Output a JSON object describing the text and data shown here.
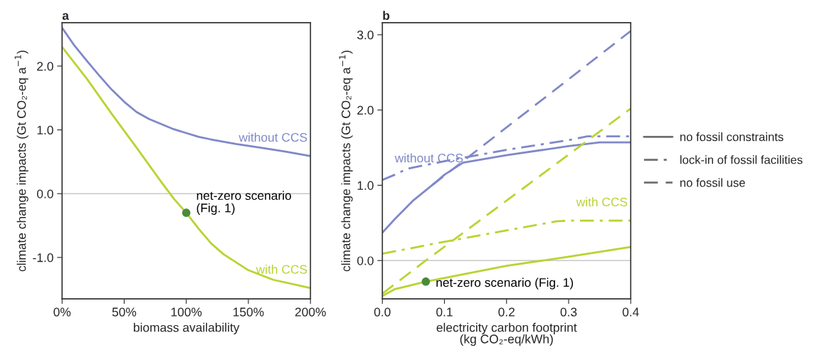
{
  "chart_data": [
    {
      "type": "line",
      "title": "a",
      "xlabel": "biomass availability",
      "ylabel": "climate change impacts (Gt CO₂-eq a$^{−1}$)",
      "xlim": [
        0,
        200
      ],
      "xticks": [
        {
          "value": 0,
          "label": "0%"
        },
        {
          "value": 50,
          "label": "50%"
        },
        {
          "value": 100,
          "label": "100%"
        },
        {
          "value": 150,
          "label": "150%"
        },
        {
          "value": 200,
          "label": "200%"
        }
      ],
      "ylim": [
        -1.65,
        2.68
      ],
      "yticks": [
        {
          "value": -1,
          "label": "-1.0"
        },
        {
          "value": 0,
          "label": "0.0"
        },
        {
          "value": 1,
          "label": "1.0"
        },
        {
          "value": 2,
          "label": "2.0"
        }
      ],
      "grid": false,
      "legend": false,
      "ref_lines": [
        {
          "axis": "y",
          "value": 0,
          "color": "#c8c8c8"
        }
      ],
      "series": [
        {
          "name": "without CCS",
          "color": "#8088c8",
          "line_style": "solid",
          "x": [
            0,
            10,
            20,
            30,
            40,
            50,
            60,
            70,
            80,
            90,
            100,
            110,
            120,
            140,
            160,
            180,
            200
          ],
          "values": [
            2.6,
            2.32,
            2.08,
            1.85,
            1.63,
            1.44,
            1.28,
            1.17,
            1.09,
            1.01,
            0.95,
            0.89,
            0.85,
            0.78,
            0.72,
            0.66,
            0.59
          ]
        },
        {
          "name": "with CCS",
          "color": "#b8d432",
          "line_style": "solid",
          "x": [
            0,
            20,
            40,
            60,
            80,
            90,
            100,
            110,
            120,
            130,
            150,
            170,
            200
          ],
          "values": [
            2.3,
            1.8,
            1.25,
            0.72,
            0.18,
            -0.08,
            -0.3,
            -0.55,
            -0.78,
            -0.95,
            -1.2,
            -1.35,
            -1.48
          ]
        },
        {
          "type": "scatter",
          "marker": "circle",
          "color": "#4a8a3a",
          "x": [
            100
          ],
          "values": [
            -0.3
          ]
        }
      ],
      "annotations": [
        {
          "text": "net-zero scenario\n(Fig. 1)",
          "x": 100,
          "y": -0.3
        }
      ]
    },
    {
      "type": "line",
      "title": "b",
      "xlabel": "electricity carbon footprint\n(kg CO₂-eq/kWh)",
      "ylabel": "climate change impacts (Gt CO₂-eq a$^{−1}$)",
      "xlim": [
        0,
        0.4
      ],
      "xticks": [
        {
          "value": 0,
          "label": "0.0"
        },
        {
          "value": 0.1,
          "label": "0.1"
        },
        {
          "value": 0.2,
          "label": "0.2"
        },
        {
          "value": 0.3,
          "label": "0.3"
        },
        {
          "value": 0.4,
          "label": "0.4"
        }
      ],
      "ylim": [
        -0.51,
        3.16
      ],
      "yticks": [
        {
          "value": 0,
          "label": "0.0"
        },
        {
          "value": 1,
          "label": "1.0"
        },
        {
          "value": 2,
          "label": "2.0"
        },
        {
          "value": 3,
          "label": "3.0"
        }
      ],
      "grid": false,
      "legend": "right",
      "ref_lines": [
        {
          "axis": "y",
          "value": 0,
          "color": "#c8c8c8"
        }
      ],
      "series": [
        {
          "color": "#8088c8",
          "line_style": "solid",
          "x": [
            0,
            0.02,
            0.05,
            0.08,
            0.1,
            0.13,
            0.2,
            0.3,
            0.35,
            0.4
          ],
          "values": [
            0.37,
            0.55,
            0.8,
            1.0,
            1.14,
            1.3,
            1.4,
            1.52,
            1.57,
            1.57
          ]
        },
        {
          "name": "without CCS",
          "color": "#8088c8",
          "line_style": "dashdot",
          "x": [
            0,
            0.02,
            0.04,
            0.1,
            0.2,
            0.3,
            0.33,
            0.4
          ],
          "values": [
            1.07,
            1.14,
            1.22,
            1.32,
            1.47,
            1.6,
            1.65,
            1.65
          ]
        },
        {
          "color": "#8088c8",
          "line_style": "dashed",
          "x": [
            0.08,
            0.4
          ],
          "values": [
            1.0,
            3.05
          ]
        },
        {
          "color": "#b8d432",
          "line_style": "solid",
          "x": [
            0,
            0.02,
            0.03,
            0.07,
            0.2,
            0.3,
            0.4
          ],
          "values": [
            -0.47,
            -0.38,
            -0.36,
            -0.28,
            -0.07,
            0.05,
            0.18
          ]
        },
        {
          "name": "with CCS",
          "color": "#b8d432",
          "line_style": "dashdot",
          "x": [
            0,
            0.1,
            0.2,
            0.28,
            0.3,
            0.4
          ],
          "values": [
            0.09,
            0.25,
            0.4,
            0.52,
            0.53,
            0.53
          ]
        },
        {
          "color": "#b8d432",
          "line_style": "dashed",
          "x": [
            0,
            0.07,
            0.4
          ],
          "values": [
            -0.44,
            0.0,
            2.02
          ]
        },
        {
          "type": "scatter",
          "marker": "circle",
          "color": "#4a8a3a",
          "x": [
            0.07
          ],
          "values": [
            -0.28
          ]
        }
      ],
      "annotations": [
        {
          "text": "net-zero scenario (Fig. 1)",
          "x": 0.07,
          "y": -0.28
        },
        "no fossil constraints",
        "lock-in of fossil facilities",
        "no fossil use"
      ]
    }
  ]
}
